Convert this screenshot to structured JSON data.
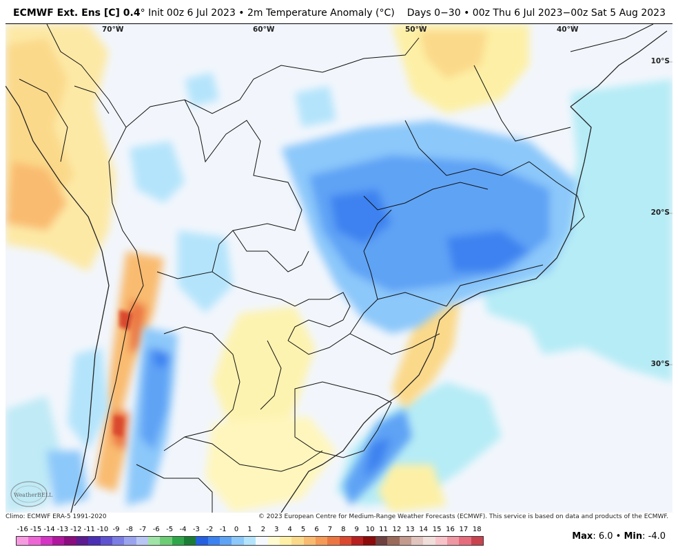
{
  "header": {
    "model_title": "ECMWF Ext.  Ens [C] 0.4",
    "degree_mark": "°",
    "run_info": " Init 00z 6 Jul 2023 • 2m Temperature Anomaly (°C)",
    "valid_range": "Days 0−30 • 00z Thu 6 Jul 2023−00z Sat 5 Aug 2023"
  },
  "map": {
    "longitude_labels": [
      "70°W",
      "60°W",
      "50°W",
      "40°W"
    ],
    "latitude_labels": [
      "10°S",
      "20°S",
      "30°S"
    ],
    "logo_text": "WeatherBELL"
  },
  "footer": {
    "climo_note": "Climo: ECMWF ERA-5 1991-2020",
    "copyright": "© 2023 European Centre for Medium-Range Weather Forecasts (ECMWF). This service is based on data and products of the ECMWF."
  },
  "colorbar": {
    "labels": [
      "-16",
      "-15",
      "-14",
      "-13",
      "-12",
      "-11",
      "-10",
      "-9",
      "-8",
      "-7",
      "-6",
      "-5",
      "-4",
      "-3",
      "-2",
      "-1",
      "0",
      "1",
      "2",
      "3",
      "4",
      "5",
      "6",
      "7",
      "8",
      "9",
      "10",
      "11",
      "12",
      "13",
      "14",
      "15",
      "16",
      "17",
      "18"
    ],
    "colors": [
      "#f79be0",
      "#ee66d6",
      "#d534c4",
      "#b1169f",
      "#8a0c7e",
      "#5c1b91",
      "#4a2fb4",
      "#5e52d0",
      "#7b7ce4",
      "#9aa4ee",
      "#b8c6f4",
      "#9fe3a6",
      "#6ccd75",
      "#2fa64a",
      "#1a7d34",
      "#2460e0",
      "#3c82f0",
      "#5fa3f5",
      "#8cc8fa",
      "#b4e4fb",
      "#f5f9fd",
      "#fffad0",
      "#fdf0a6",
      "#fbd98a",
      "#f9bb70",
      "#f59a57",
      "#ec7642",
      "#d9482f",
      "#b81f1f",
      "#8c0a0a",
      "#6e4040",
      "#9a6a5a",
      "#c39a8e",
      "#e0c4bd",
      "#f0dedb",
      "#f7c3c9",
      "#ef97a3",
      "#e56c7d",
      "#c9434f"
    ]
  },
  "stats": {
    "max_label": "Max",
    "max_value": "6.0",
    "min_label": "Min",
    "min_value": "-4.0"
  }
}
